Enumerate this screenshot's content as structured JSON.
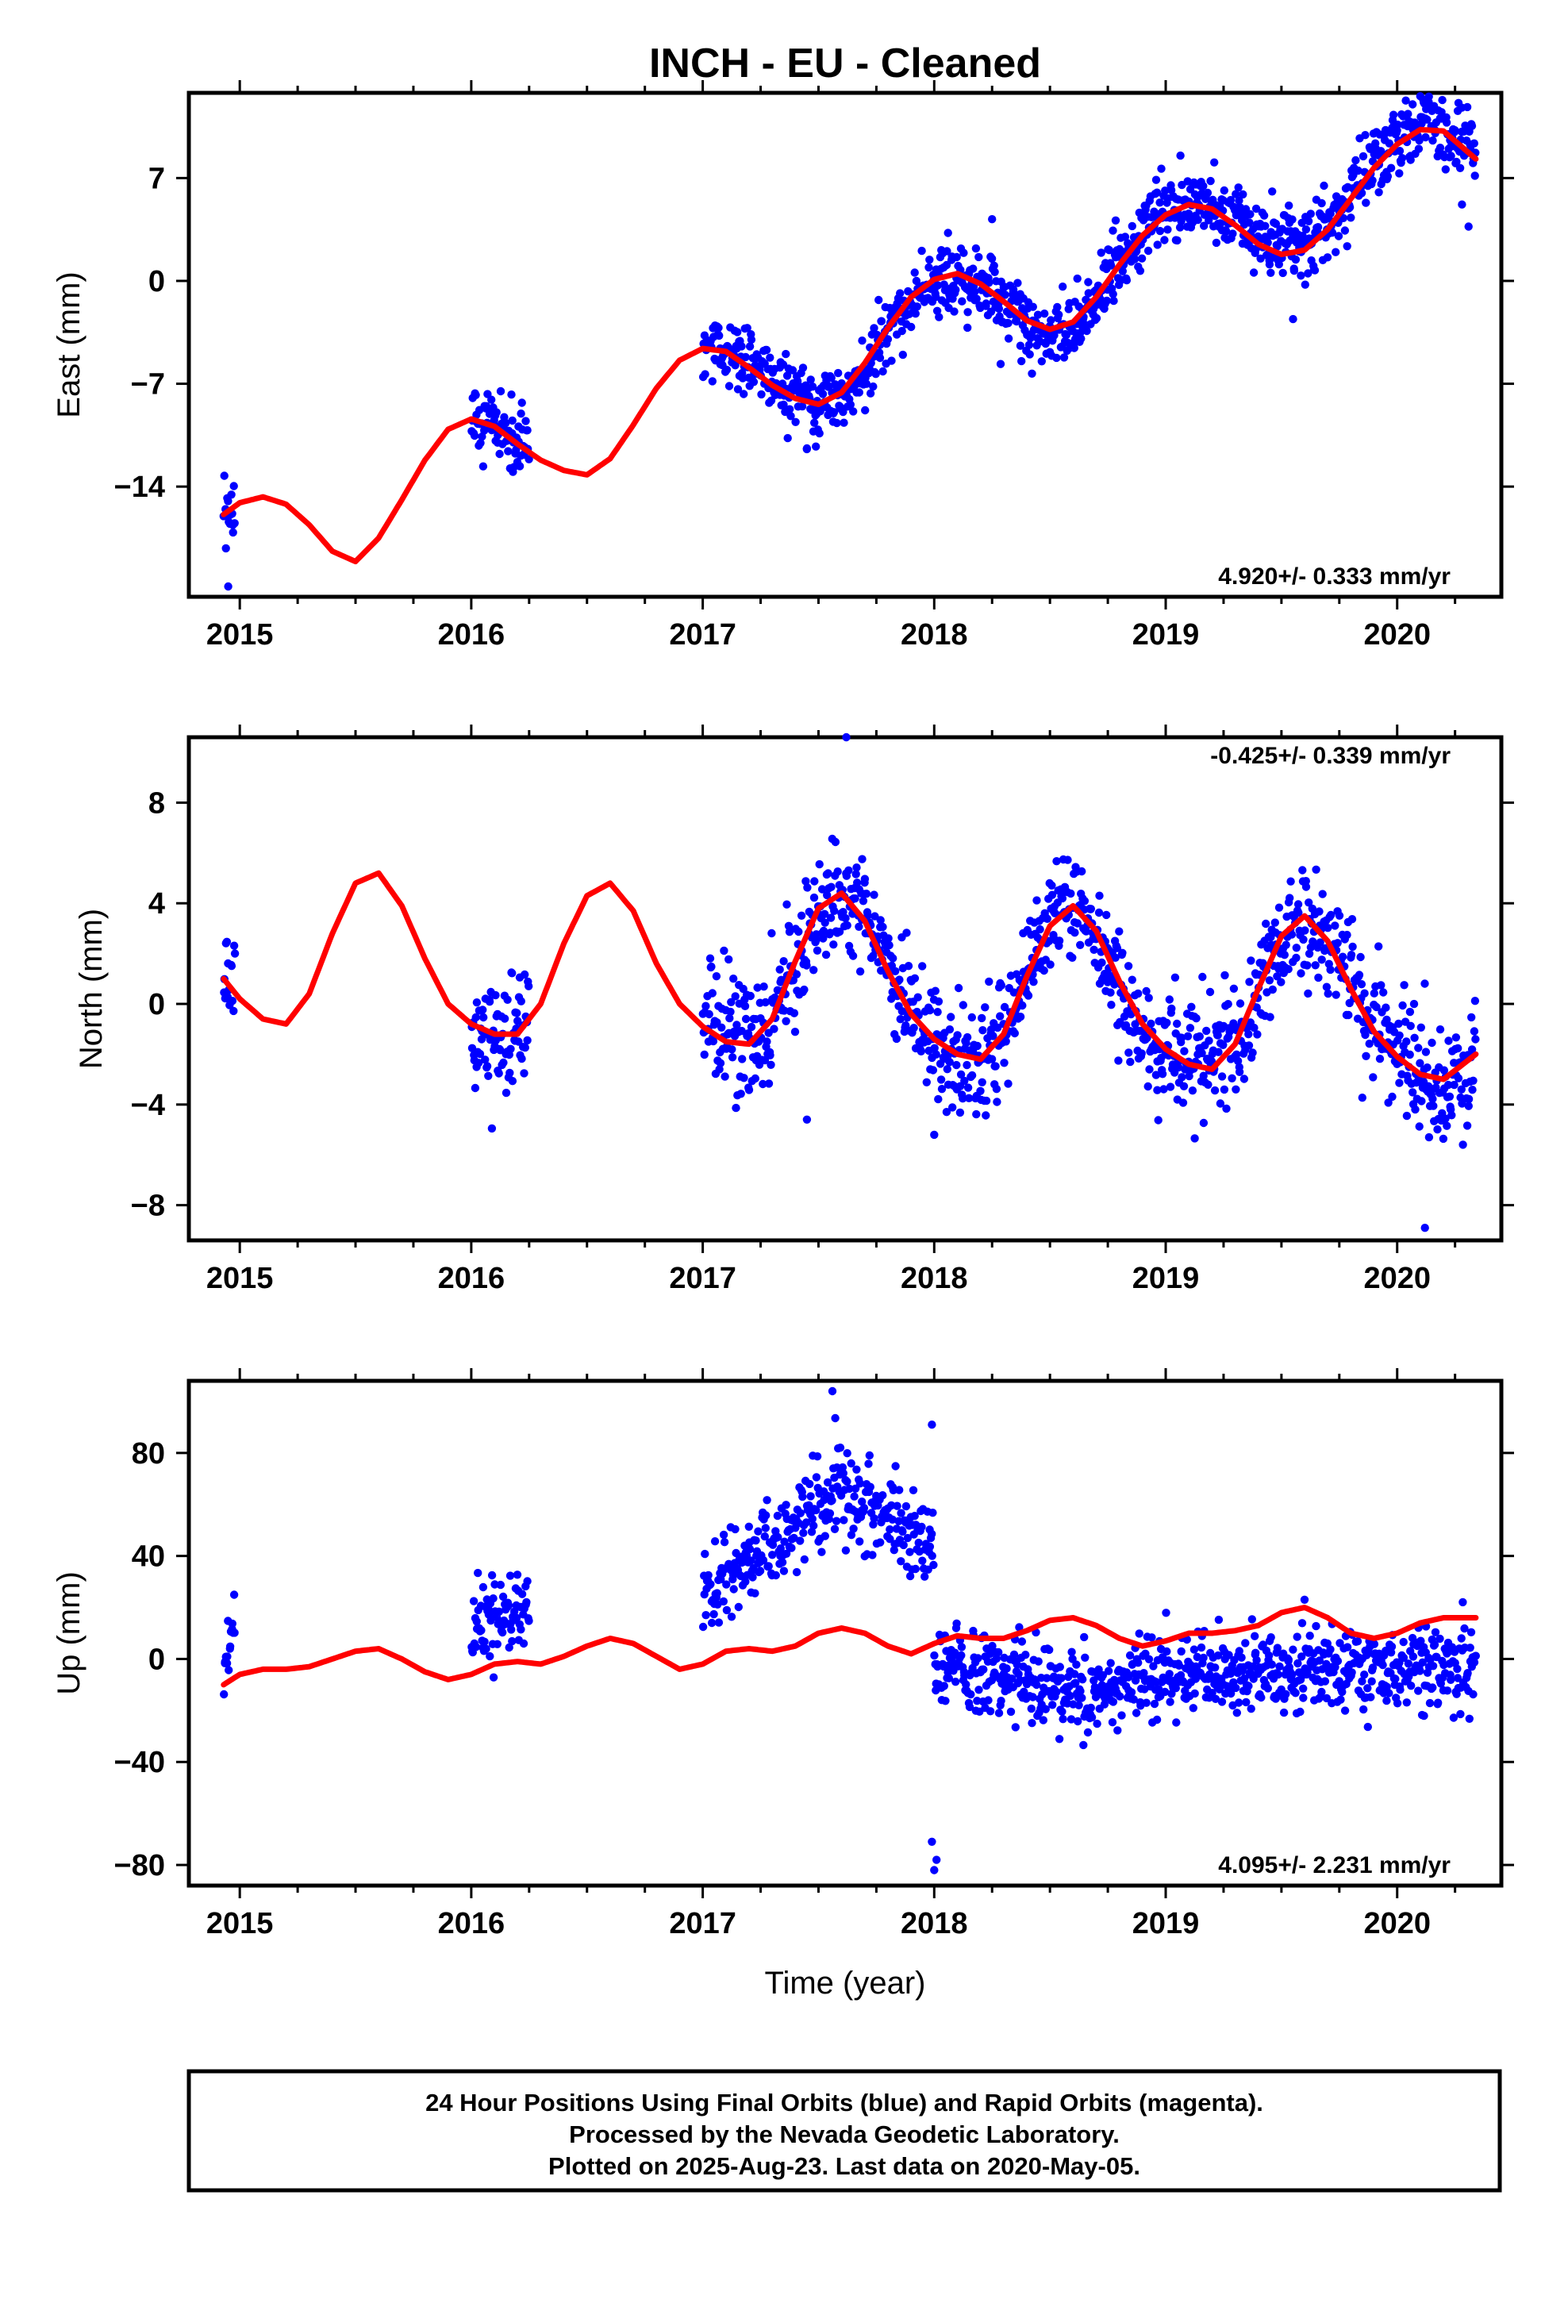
{
  "title": "INCH  - EU - Cleaned",
  "colors": {
    "data": "#0000ff",
    "fit": "#ff0000",
    "frame": "#000000"
  },
  "xlabel": "Time (year)",
  "footer": {
    "lines": [
      "24 Hour Positions Using Final Orbits (blue) and Rapid Orbits (magenta).",
      "Processed by the Nevada Geodetic Laboratory.",
      "Plotted on 2025-Aug-23. Last data on 2020-May-05."
    ]
  },
  "chart_data": [
    {
      "type": "scatter",
      "component": "east",
      "ylabel": "East (mm)",
      "rate": "4.920+/- 0.333 mm/yr",
      "rate_position": "bottom-right",
      "xlim": [
        2014.78,
        2020.45
      ],
      "ylim": [
        -21.5,
        12.8
      ],
      "xticks": [
        2015,
        2016,
        2017,
        2018,
        2019,
        2020
      ],
      "xtick_labels": [
        "2015",
        "2016",
        "2017",
        "2018",
        "2019",
        "2020"
      ],
      "yticks": [
        -14,
        -7,
        0,
        7
      ],
      "ytick_labels": [
        "−14",
        "−7",
        "0",
        "7"
      ],
      "data_segments": [
        {
          "start": 2014.93,
          "end": 2014.98
        },
        {
          "start": 2016.0,
          "end": 2016.25
        },
        {
          "start": 2017.0,
          "end": 2018.66
        },
        {
          "start": 2018.66,
          "end": 2020.34
        }
      ],
      "fit_series": {
        "name": "",
        "x": [
          2014.93,
          2015.0,
          2015.1,
          2015.2,
          2015.3,
          2015.4,
          2015.5,
          2015.6,
          2015.7,
          2015.8,
          2015.9,
          2016.0,
          2016.1,
          2016.2,
          2016.3,
          2016.4,
          2016.5,
          2016.6,
          2016.7,
          2016.8,
          2016.9,
          2017.0,
          2017.1,
          2017.2,
          2017.3,
          2017.4,
          2017.5,
          2017.6,
          2017.7,
          2017.8,
          2017.9,
          2018.0,
          2018.1,
          2018.2,
          2018.3,
          2018.4,
          2018.5,
          2018.6,
          2018.7,
          2018.8,
          2018.9,
          2019.0,
          2019.1,
          2019.2,
          2019.3,
          2019.4,
          2019.5,
          2019.6,
          2019.7,
          2019.8,
          2019.9,
          2020.0,
          2020.1,
          2020.2,
          2020.34
        ],
        "y": [
          -15.9,
          -15.1,
          -14.7,
          -15.2,
          -16.6,
          -18.4,
          -19.1,
          -17.5,
          -14.9,
          -12.2,
          -10.1,
          -9.4,
          -9.9,
          -11.1,
          -12.2,
          -12.9,
          -13.2,
          -12.1,
          -9.8,
          -7.3,
          -5.4,
          -4.6,
          -4.8,
          -5.9,
          -7.1,
          -8.0,
          -8.4,
          -7.6,
          -5.6,
          -3.2,
          -1.1,
          0.1,
          0.5,
          -0.2,
          -1.4,
          -2.7,
          -3.3,
          -2.8,
          -1.1,
          1.1,
          3.1,
          4.5,
          5.2,
          4.9,
          3.8,
          2.5,
          1.8,
          2.1,
          3.5,
          5.6,
          7.7,
          9.3,
          10.3,
          10.2,
          8.3
        ]
      },
      "data_summary": "blue daily positions closely following the red fit curve, spread about +/-2 mm, with a few outliers down to -20.5 mm in late 2014"
    },
    {
      "type": "scatter",
      "component": "north",
      "ylabel": "North (mm)",
      "rate": "-0.425+/- 0.339 mm/yr",
      "rate_position": "top-right",
      "xlim": [
        2014.78,
        2020.45
      ],
      "ylim": [
        -9.4,
        10.6
      ],
      "xticks": [
        2015,
        2016,
        2017,
        2018,
        2019,
        2020
      ],
      "xtick_labels": [
        "2015",
        "2016",
        "2017",
        "2018",
        "2019",
        "2020"
      ],
      "yticks": [
        -8,
        -4,
        0,
        4,
        8
      ],
      "ytick_labels": [
        "−8",
        "−4",
        "0",
        "4",
        "8"
      ],
      "data_segments": [
        {
          "start": 2014.93,
          "end": 2014.98
        },
        {
          "start": 2016.0,
          "end": 2016.25
        },
        {
          "start": 2017.0,
          "end": 2020.34
        }
      ],
      "fit_series": {
        "name": "",
        "x": [
          2014.93,
          2015.0,
          2015.1,
          2015.2,
          2015.3,
          2015.4,
          2015.5,
          2015.6,
          2015.7,
          2015.8,
          2015.9,
          2016.0,
          2016.1,
          2016.2,
          2016.3,
          2016.4,
          2016.5,
          2016.6,
          2016.7,
          2016.8,
          2016.9,
          2017.0,
          2017.1,
          2017.2,
          2017.3,
          2017.4,
          2017.5,
          2017.6,
          2017.7,
          2017.8,
          2017.9,
          2018.0,
          2018.1,
          2018.2,
          2018.3,
          2018.4,
          2018.5,
          2018.6,
          2018.7,
          2018.8,
          2018.9,
          2019.0,
          2019.1,
          2019.2,
          2019.3,
          2019.4,
          2019.5,
          2019.6,
          2019.7,
          2019.8,
          2019.9,
          2020.0,
          2020.1,
          2020.2,
          2020.34
        ],
        "y": [
          1.0,
          0.2,
          -0.6,
          -0.8,
          0.4,
          2.8,
          4.8,
          5.2,
          3.9,
          1.8,
          0.0,
          -0.8,
          -1.2,
          -1.2,
          0.0,
          2.4,
          4.3,
          4.8,
          3.7,
          1.6,
          0.0,
          -0.9,
          -1.5,
          -1.6,
          -0.6,
          1.7,
          3.8,
          4.4,
          3.3,
          1.3,
          -0.4,
          -1.4,
          -2.0,
          -2.2,
          -1.2,
          1.1,
          3.1,
          3.9,
          2.9,
          0.9,
          -0.8,
          -1.8,
          -2.4,
          -2.6,
          -1.6,
          0.6,
          2.7,
          3.5,
          2.5,
          0.6,
          -1.1,
          -2.1,
          -2.8,
          -3.0,
          -2.0
        ]
      },
      "data_summary": "blue daily positions following the red annual curve with about +/-1.5 mm scatter; extremes near 10.6 mm (2017.6) and -8.9 mm (2020.1)"
    },
    {
      "type": "scatter",
      "component": "up",
      "ylabel": "Up (mm)",
      "rate": "4.095+/- 2.231 mm/yr",
      "rate_position": "bottom-right",
      "xlim": [
        2014.78,
        2020.45
      ],
      "ylim": [
        -88,
        108
      ],
      "xticks": [
        2015,
        2016,
        2017,
        2018,
        2019,
        2020
      ],
      "xtick_labels": [
        "2015",
        "2016",
        "2017",
        "2018",
        "2019",
        "2020"
      ],
      "yticks": [
        -80,
        -40,
        0,
        40,
        80
      ],
      "ytick_labels": [
        "−80",
        "−40",
        "0",
        "40",
        "80"
      ],
      "data_segments": [
        {
          "start": 2014.93,
          "end": 2014.98
        },
        {
          "start": 2016.0,
          "end": 2016.25
        },
        {
          "start": 2017.0,
          "end": 2017.99
        },
        {
          "start": 2017.99,
          "end": 2020.34
        }
      ],
      "fit_series": {
        "name": "",
        "x": [
          2014.93,
          2015.0,
          2015.1,
          2015.2,
          2015.3,
          2015.4,
          2015.5,
          2015.6,
          2015.7,
          2015.8,
          2015.9,
          2016.0,
          2016.1,
          2016.2,
          2016.3,
          2016.4,
          2016.5,
          2016.6,
          2016.7,
          2016.8,
          2016.9,
          2017.0,
          2017.1,
          2017.2,
          2017.3,
          2017.4,
          2017.5,
          2017.6,
          2017.7,
          2017.8,
          2017.9,
          2018.0,
          2018.1,
          2018.2,
          2018.3,
          2018.4,
          2018.5,
          2018.6,
          2018.7,
          2018.8,
          2018.9,
          2019.0,
          2019.1,
          2019.2,
          2019.3,
          2019.4,
          2019.5,
          2019.6,
          2019.7,
          2019.8,
          2019.9,
          2020.0,
          2020.1,
          2020.2,
          2020.34
        ],
        "y": [
          -10,
          -6,
          -4,
          -4,
          -3,
          0,
          3,
          4,
          0,
          -5,
          -8,
          -6,
          -2,
          -1,
          -2,
          1,
          5,
          8,
          6,
          1,
          -4,
          -2,
          3,
          4,
          3,
          5,
          10,
          12,
          10,
          5,
          2,
          6,
          9,
          8,
          8,
          11,
          15,
          16,
          13,
          8,
          5,
          7,
          10,
          10,
          11,
          13,
          18,
          20,
          16,
          10,
          8,
          10,
          14,
          16,
          16
        ]
      },
      "data_summary": "blue daily positions: about 10-60 mm in 2017 rising to a peak near 104 mm at 2017.55, then about -30 to +20 mm from 2018 on; outliers near -83 mm at 2018.0"
    }
  ]
}
